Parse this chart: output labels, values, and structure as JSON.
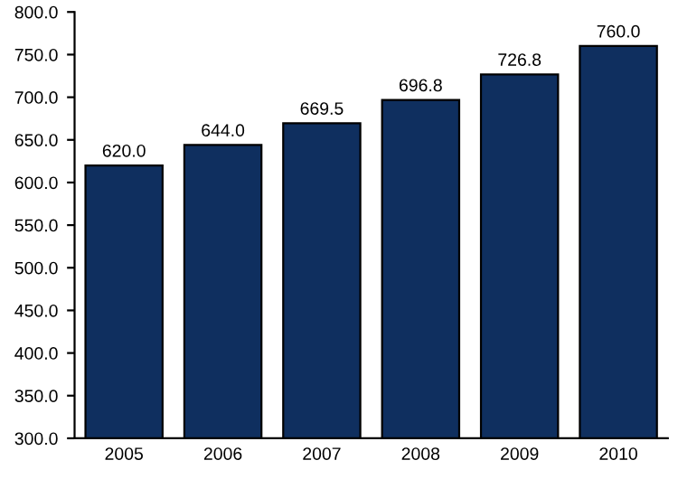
{
  "chart_data": {
    "type": "bar",
    "categories": [
      "2005",
      "2006",
      "2007",
      "2008",
      "2009",
      "2010"
    ],
    "values": [
      620.0,
      644.0,
      669.5,
      696.8,
      726.8,
      760.0
    ],
    "value_labels": [
      "620.0",
      "644.0",
      "669.5",
      "696.8",
      "726.8",
      "760.0"
    ],
    "color": "#0f2f5f",
    "ylim": [
      300,
      800
    ],
    "yticks": [
      {
        "value": 300,
        "label": "300.0"
      },
      {
        "value": 350,
        "label": "350.0"
      },
      {
        "value": 400,
        "label": "400.0"
      },
      {
        "value": 450,
        "label": "450.0"
      },
      {
        "value": 500,
        "label": "500.0"
      },
      {
        "value": 550,
        "label": "550.0"
      },
      {
        "value": 600,
        "label": "600.0"
      },
      {
        "value": 650,
        "label": "650.0"
      },
      {
        "value": 700,
        "label": "700.0"
      },
      {
        "value": 750,
        "label": "750.0"
      },
      {
        "value": 800,
        "label": "800.0"
      }
    ],
    "grid": false,
    "legend": false
  }
}
